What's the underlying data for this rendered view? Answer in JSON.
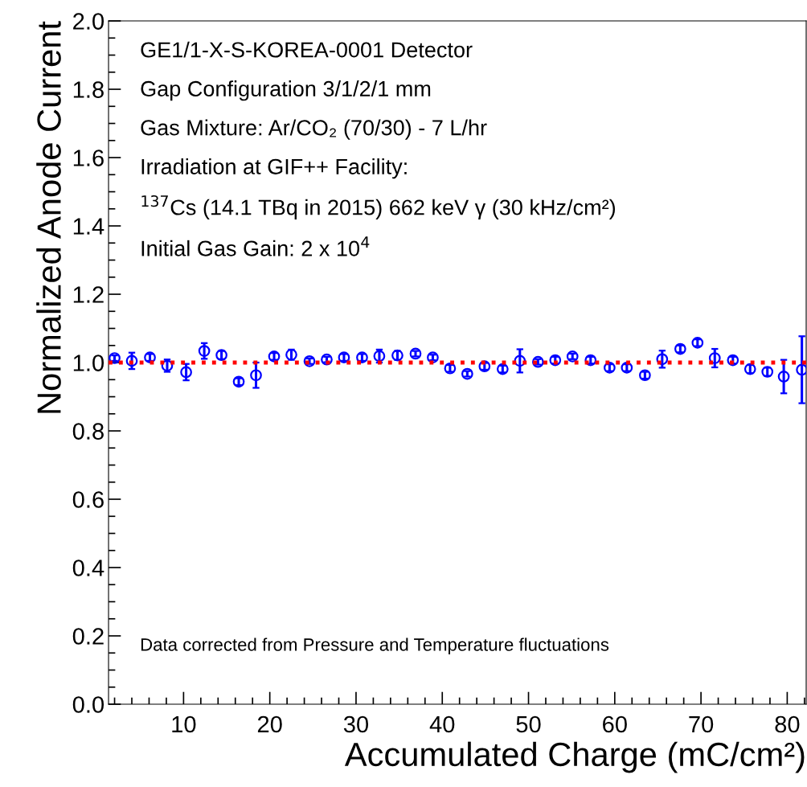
{
  "chart_data": {
    "type": "scatter",
    "xlabel": "Accumulated Charge (mC/cm²)",
    "ylabel": "Normalized Anode Current",
    "x": [
      2.0,
      4.0,
      6.1,
      8.1,
      10.3,
      12.4,
      14.4,
      16.4,
      18.4,
      20.5,
      22.5,
      24.6,
      26.6,
      28.6,
      30.7,
      32.7,
      34.8,
      36.9,
      38.9,
      40.9,
      42.9,
      44.9,
      47.0,
      49.0,
      51.1,
      53.1,
      55.1,
      57.2,
      59.4,
      61.4,
      63.5,
      65.5,
      67.6,
      69.6,
      71.6,
      73.7,
      75.7,
      77.7,
      79.6,
      81.7
    ],
    "series": [
      {
        "color": "#0000ff",
        "values": [
          1.013,
          1.005,
          1.015,
          0.991,
          0.972,
          1.034,
          1.022,
          0.944,
          0.963,
          1.018,
          1.023,
          1.004,
          1.009,
          1.015,
          1.015,
          1.019,
          1.021,
          1.026,
          1.015,
          0.983,
          0.967,
          0.989,
          0.981,
          1.005,
          1.002,
          1.007,
          1.018,
          1.007,
          0.985,
          0.985,
          0.963,
          1.01,
          1.04,
          1.058,
          1.013,
          1.007,
          0.981,
          0.973,
          0.959,
          0.979
        ],
        "errors": [
          0.008,
          0.024,
          0.01,
          0.018,
          0.024,
          0.023,
          0.012,
          0.01,
          0.037,
          0.01,
          0.015,
          0.008,
          0.008,
          0.01,
          0.01,
          0.019,
          0.013,
          0.008,
          0.008,
          0.01,
          0.008,
          0.01,
          0.01,
          0.034,
          0.008,
          0.01,
          0.008,
          0.01,
          0.01,
          0.01,
          0.01,
          0.025,
          0.01,
          0.01,
          0.027,
          0.01,
          0.012,
          0.012,
          0.049,
          0.098
        ]
      }
    ],
    "marker": "circle",
    "grid": false,
    "legend": false,
    "xlim": [
      1.3,
      82.2
    ],
    "xticks": [
      10,
      20,
      30,
      40,
      50,
      60,
      70,
      80
    ],
    "ylim": [
      0,
      2
    ],
    "yticks": [
      {
        "value": 0,
        "label": "0.0"
      },
      {
        "value": 0.2,
        "label": "0.2"
      },
      {
        "value": 0.4,
        "label": "0.4"
      },
      {
        "value": 0.6,
        "label": "0.6"
      },
      {
        "value": 0.8,
        "label": "0.8"
      },
      {
        "value": 1,
        "label": "1.0"
      },
      {
        "value": 1.2,
        "label": "1.2"
      },
      {
        "value": 1.4,
        "label": "1.4"
      },
      {
        "value": 1.6,
        "label": "1.6"
      },
      {
        "value": 1.8,
        "label": "1.8"
      },
      {
        "value": 2,
        "label": "2.0"
      }
    ],
    "ref_lines": [
      {
        "axis": "y",
        "value": 1,
        "color": "#ff0000",
        "line_style": "dotted"
      }
    ],
    "annotations": [
      "GE1/1-X-S-KOREA-0001 Detector",
      "Gap Configuration 3/1/2/1 mm",
      "Gas Mixture: Ar/CO₂ (70/30) - 7 L/hr",
      "Irradiation at GIF++ Facility:",
      "$^{137}$Cs (14.1 TBq in 2015) 662 keV γ (30 kHz/cm²)",
      "Initial Gas Gain: 2 x 10$^{4}$",
      "Data corrected from Pressure and Temperature fluctuations"
    ]
  }
}
